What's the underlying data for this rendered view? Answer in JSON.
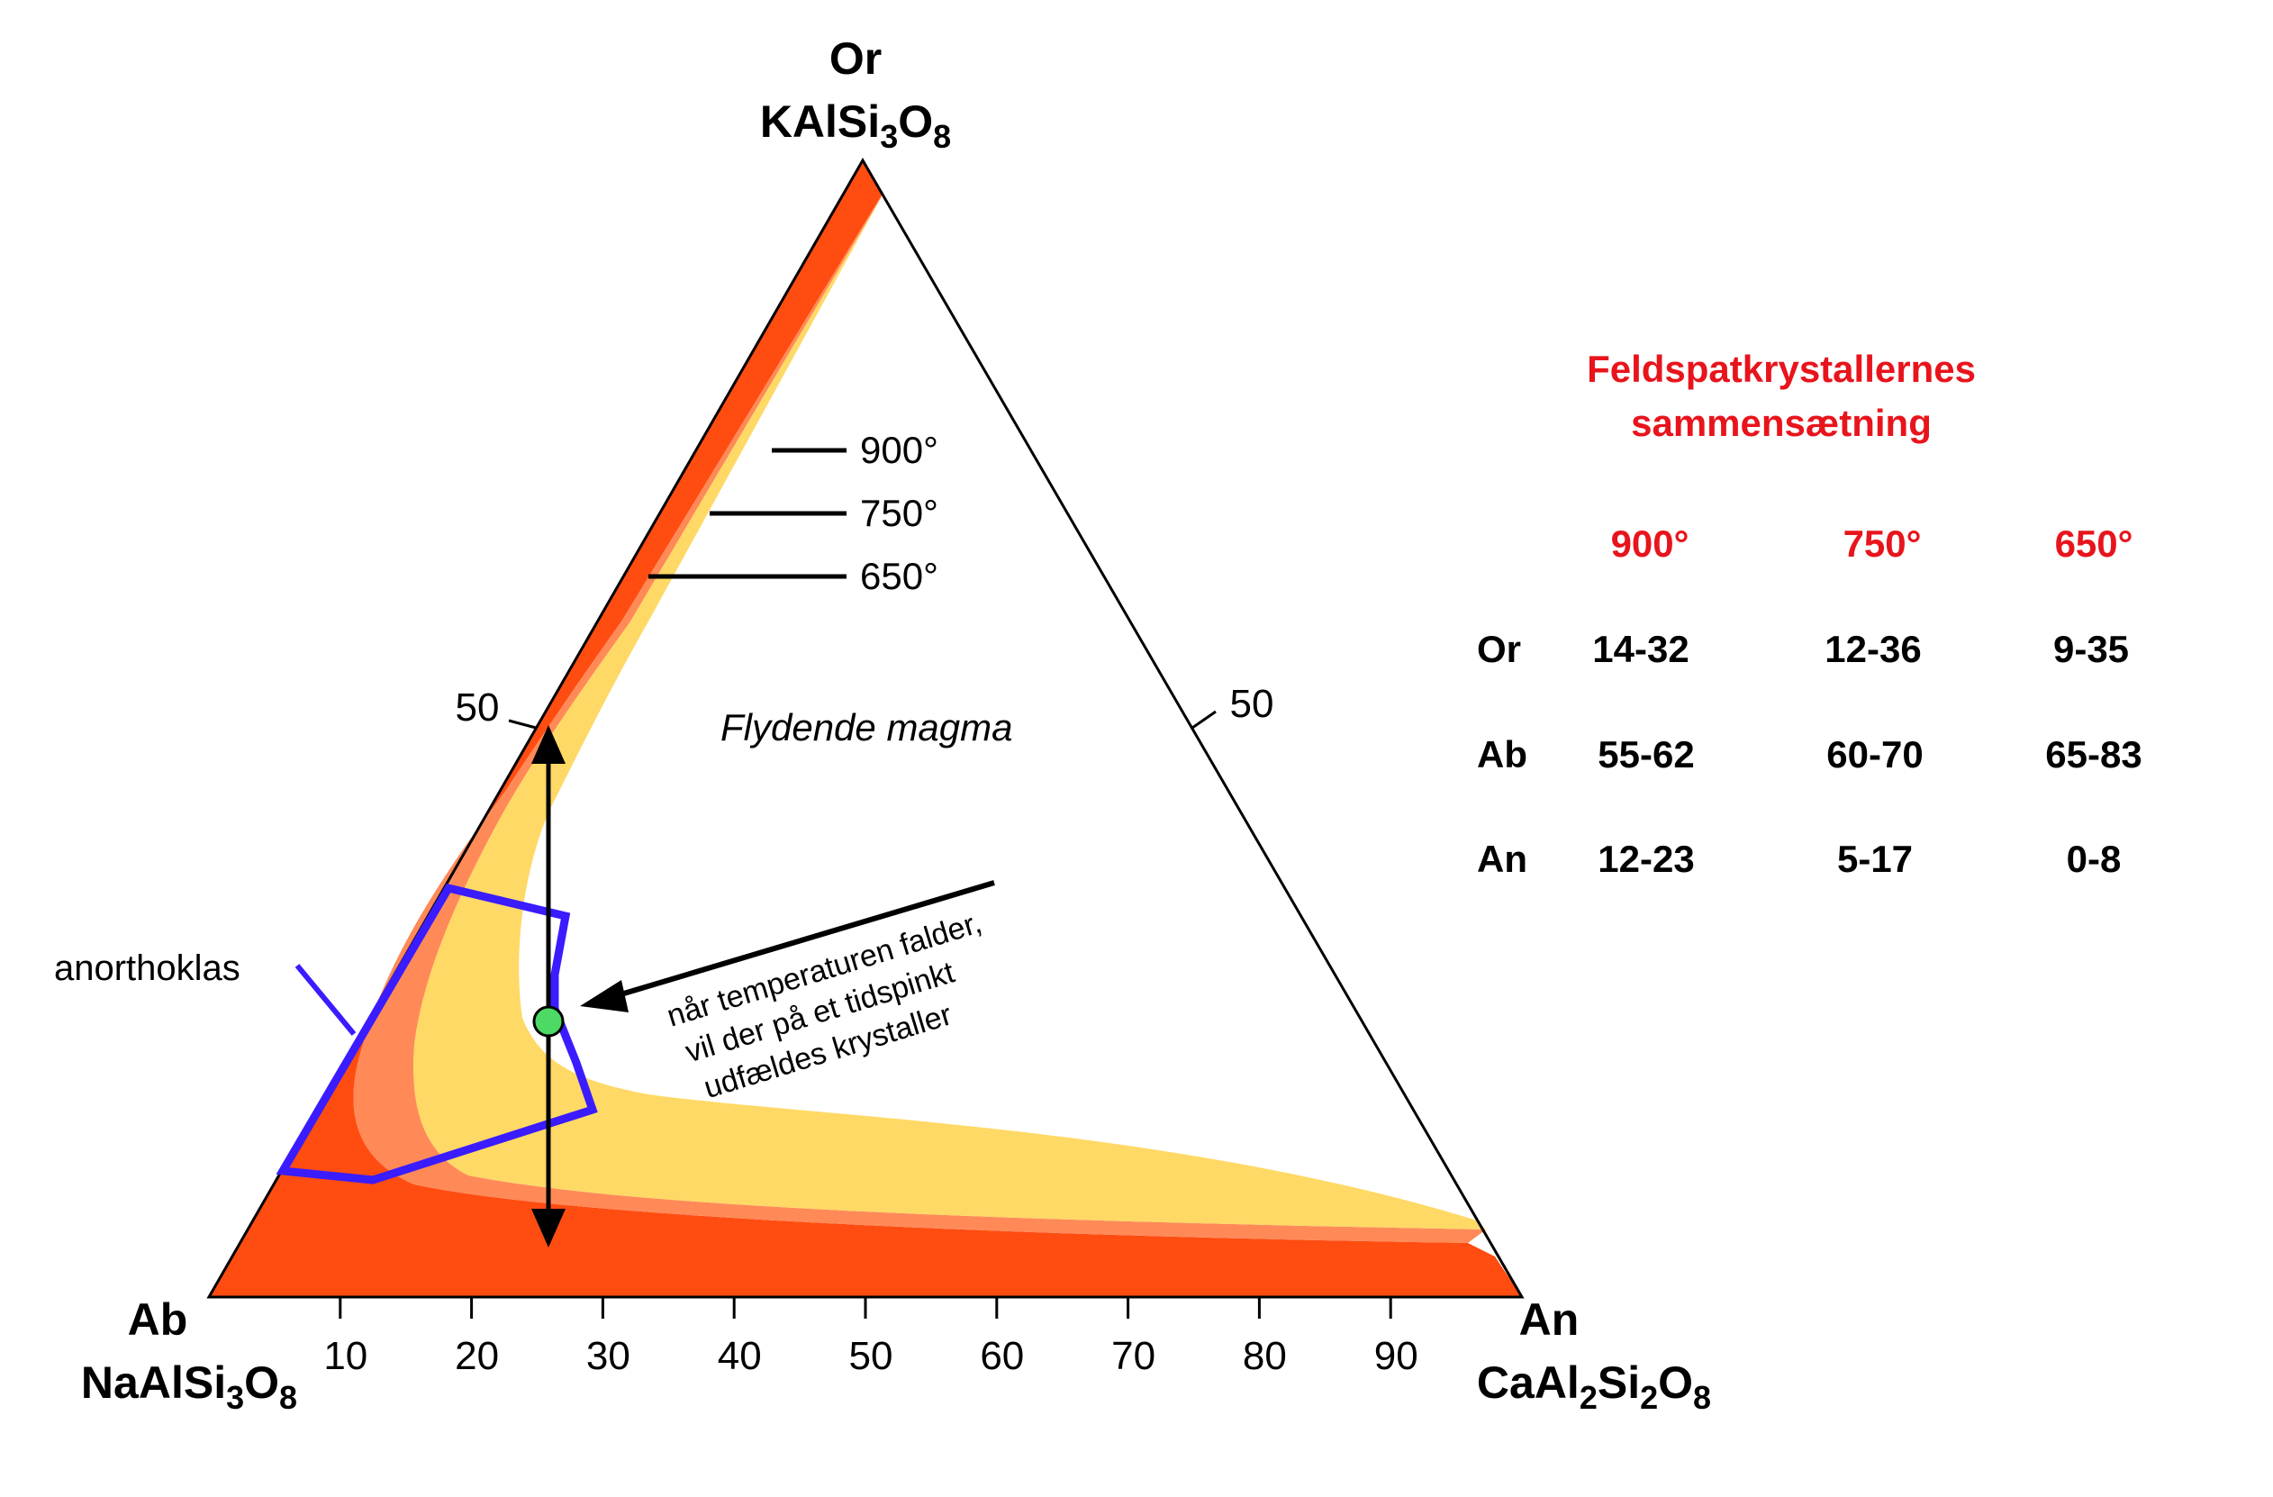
{
  "vertices": {
    "top": {
      "name": "Or",
      "formula": [
        "KAlSi",
        "3",
        "O",
        "8"
      ]
    },
    "left": {
      "name": "Ab",
      "formula": [
        "NaAlSi",
        "3",
        "O",
        "8"
      ]
    },
    "right": {
      "name": "An",
      "formula": [
        "CaAl",
        "2",
        "Si",
        "2",
        "O",
        "8"
      ]
    }
  },
  "bottom_ticks": [
    "10",
    "20",
    "30",
    "40",
    "50",
    "60",
    "70",
    "80",
    "90"
  ],
  "left_edge_tick": "50",
  "right_edge_tick": "50",
  "temperature_labels": [
    "900°",
    "750°",
    "650°"
  ],
  "field_label": "Flydende magma",
  "annotation_label": "anorthoklas",
  "note_lines": [
    "når temperaturen falder,",
    "vil der på et tidspinkt",
    "udfældes krystaller"
  ],
  "colors": {
    "deep_orange": "#ff4c11",
    "salmon": "#ff8a58",
    "yellow": "#ffd966",
    "blue_outline": "#3a1cff",
    "green_point": "#4cd964",
    "table_red": "#e8141c"
  },
  "table": {
    "title": [
      "Feldspatkrystallernes",
      "sammensætning"
    ],
    "headers": [
      "900°",
      "750°",
      "650°"
    ],
    "rows": [
      {
        "label": "Or",
        "values": [
          "14-32",
          "12-36",
          "9-35"
        ]
      },
      {
        "label": "Ab",
        "values": [
          "55-62",
          "60-70",
          "65-83"
        ]
      },
      {
        "label": "An",
        "values": [
          "12-23",
          "5-17",
          "0-8"
        ]
      }
    ]
  }
}
